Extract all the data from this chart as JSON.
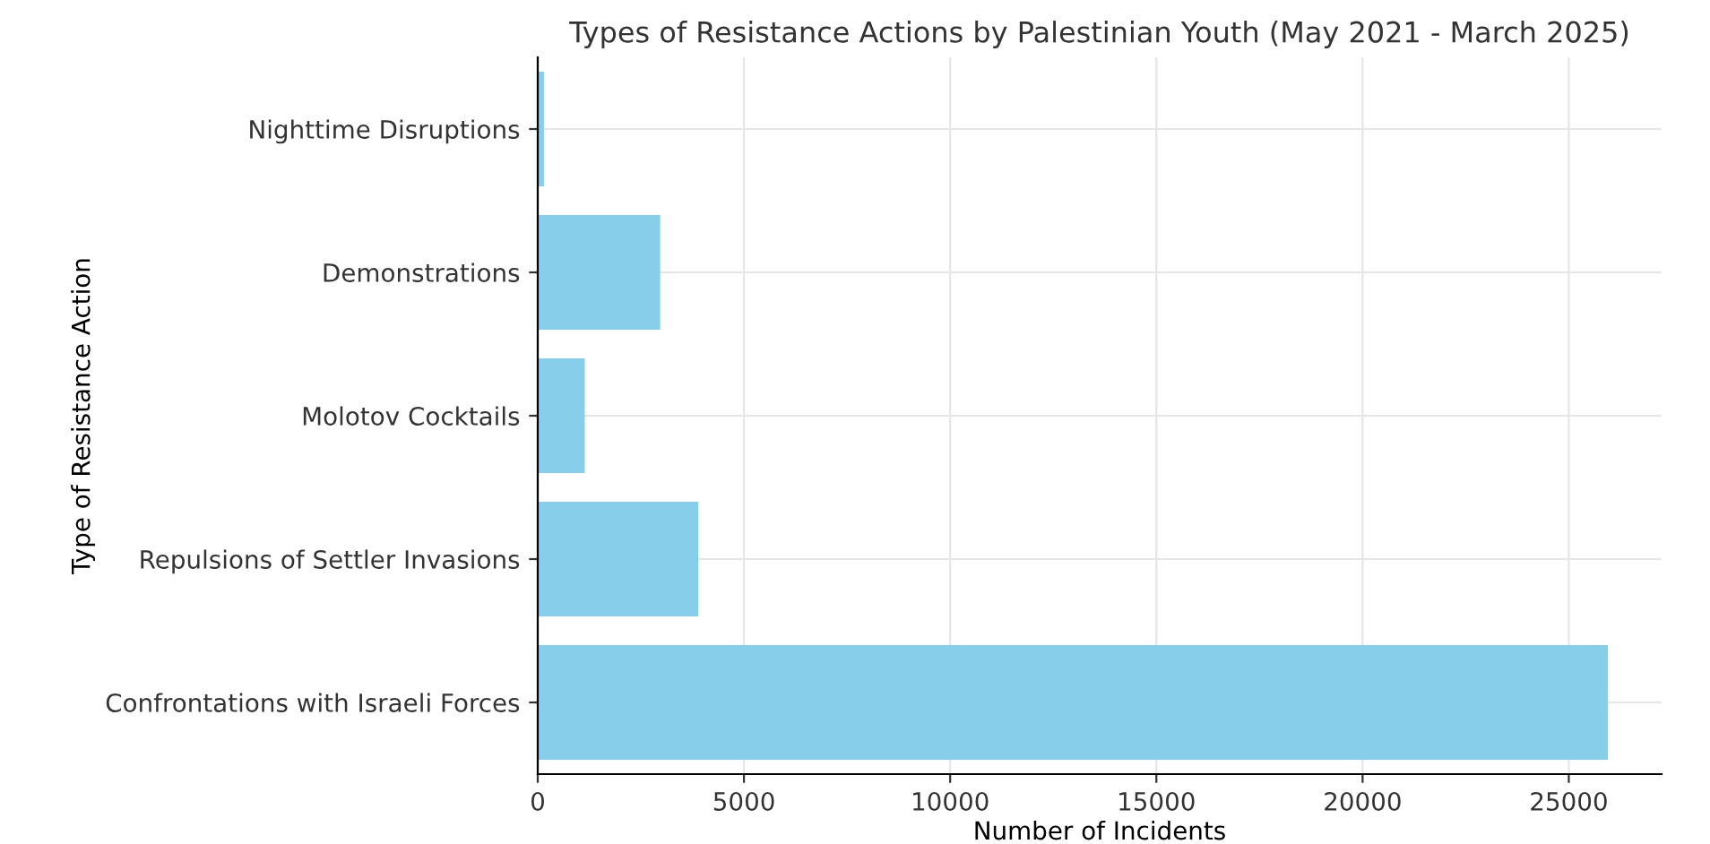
{
  "chart_data": {
    "type": "bar",
    "orientation": "horizontal",
    "title": "Types of Resistance Actions by Palestinian Youth (May 2021 - March 2025)",
    "xlabel": "Number of Incidents",
    "ylabel": "Type of Resistance Action",
    "categories": [
      "Nighttime Disruptions",
      "Demonstrations",
      "Molotov Cocktails",
      "Repulsions of Settler Invasions",
      "Confrontations with Israeli Forces"
    ],
    "values": [
      150,
      2970,
      1140,
      3890,
      25950
    ],
    "color": "#87ceeb",
    "xlim": [
      0,
      27250
    ],
    "xticks": [
      0,
      5000,
      10000,
      15000,
      20000,
      25000
    ],
    "grid": true
  }
}
